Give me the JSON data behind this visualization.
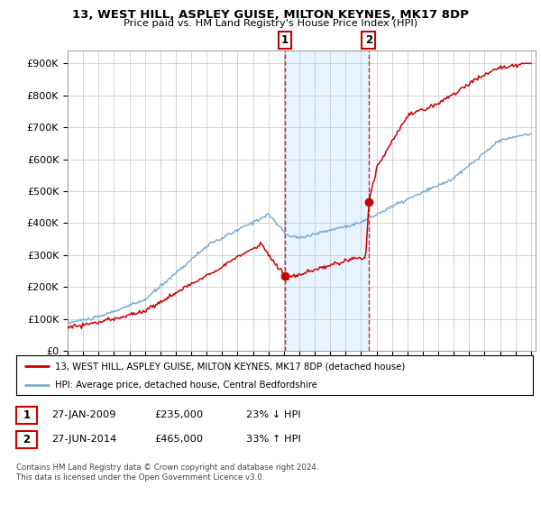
{
  "title": "13, WEST HILL, ASPLEY GUISE, MILTON KEYNES, MK17 8DP",
  "subtitle": "Price paid vs. HM Land Registry's House Price Index (HPI)",
  "ylabel_vals": [
    0,
    100000,
    200000,
    300000,
    400000,
    500000,
    600000,
    700000,
    800000,
    900000
  ],
  "ylabel_labels": [
    "£0",
    "£100K",
    "£200K",
    "£300K",
    "£400K",
    "£500K",
    "£600K",
    "£700K",
    "£800K",
    "£900K"
  ],
  "ylim_max": 940000,
  "sale1_year": 2009.07,
  "sale1_price": 235000,
  "sale2_year": 2014.49,
  "sale2_price": 465000,
  "legend_line1": "13, WEST HILL, ASPLEY GUISE, MILTON KEYNES, MK17 8DP (detached house)",
  "legend_line2": "HPI: Average price, detached house, Central Bedfordshire",
  "tx1_label": "1",
  "tx1_date": "27-JAN-2009",
  "tx1_price": "£235,000",
  "tx1_hpi": "23% ↓ HPI",
  "tx2_label": "2",
  "tx2_date": "27-JUN-2014",
  "tx2_price": "£465,000",
  "tx2_hpi": "33% ↑ HPI",
  "copyright": "Contains HM Land Registry data © Crown copyright and database right 2024.\nThis data is licensed under the Open Government Licence v3.0.",
  "red_color": "#cc0000",
  "blue_color": "#7aadcf",
  "shade_color": "#ddeeff",
  "grid_color": "#cccccc",
  "bg_color": "#ffffff",
  "label_box_color": "#cc0000"
}
